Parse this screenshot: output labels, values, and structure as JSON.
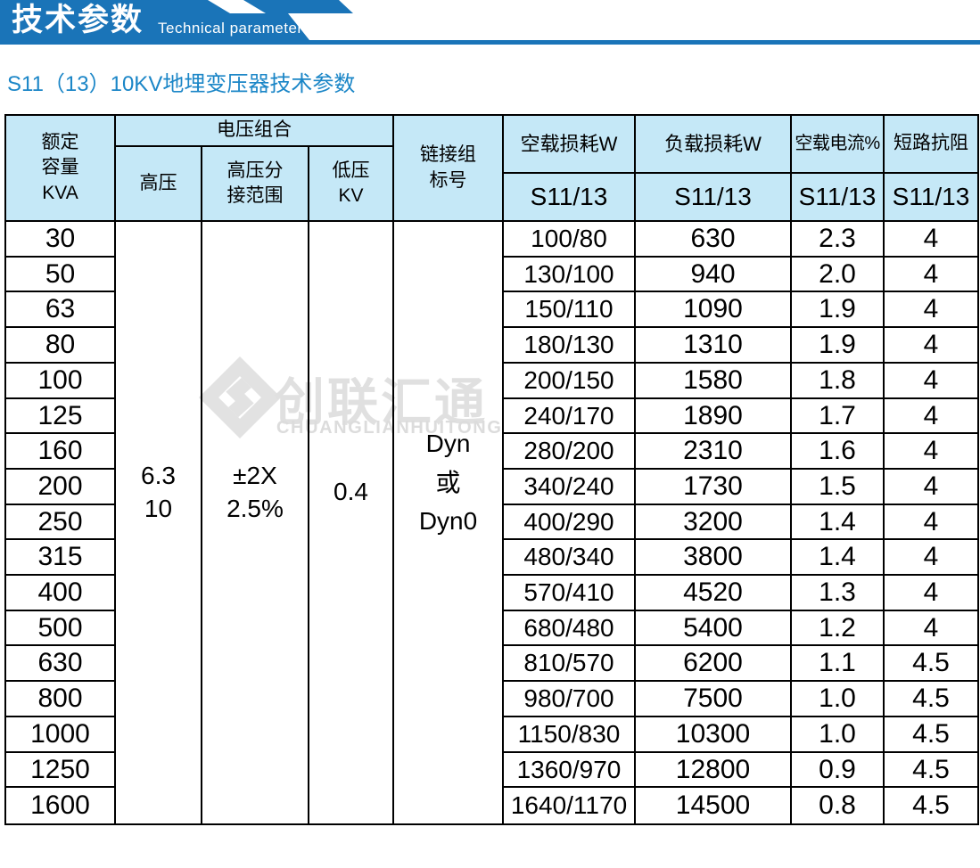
{
  "banner": {
    "title": "技术参数",
    "subtitle": "Technical parameter"
  },
  "section_title": "S11（13）10KV地埋变压器技术参数",
  "colors": {
    "banner_blue": "#1a74b8",
    "title_blue": "#1b86c7",
    "header_bg": "#c5e8f7",
    "border": "#000000",
    "watermark_gray": "#e2e2e2"
  },
  "watermark": {
    "cn": "创联汇通",
    "en": "CHUANGLIANHUITONG"
  },
  "table": {
    "headers": {
      "rated_capacity": "额定\n容量\nKVA",
      "voltage_group": "电压组合",
      "hv": "高压",
      "hv_tap": "高压分\n接范围",
      "lv": "低压\nKV",
      "vector_group": "链接组\n标号",
      "no_load_loss": "空载损耗W",
      "load_loss": "负载损耗W",
      "no_load_current": "空载电流%",
      "impedance": "短路抗阻",
      "sub": "S11/13"
    },
    "merged": {
      "hv": "6.3\n10",
      "hv_tap": "±2X\n2.5%",
      "lv": "0.4",
      "vector_group": "Dyn\n或\nDyn0"
    },
    "rows": [
      {
        "kva": "30",
        "no_load_loss": "100/80",
        "load_loss": "630",
        "no_load_current": "2.3",
        "impedance": "4"
      },
      {
        "kva": "50",
        "no_load_loss": "130/100",
        "load_loss": "940",
        "no_load_current": "2.0",
        "impedance": "4"
      },
      {
        "kva": "63",
        "no_load_loss": "150/110",
        "load_loss": "1090",
        "no_load_current": "1.9",
        "impedance": "4"
      },
      {
        "kva": "80",
        "no_load_loss": "180/130",
        "load_loss": "1310",
        "no_load_current": "1.9",
        "impedance": "4"
      },
      {
        "kva": "100",
        "no_load_loss": "200/150",
        "load_loss": "1580",
        "no_load_current": "1.8",
        "impedance": "4"
      },
      {
        "kva": "125",
        "no_load_loss": "240/170",
        "load_loss": "1890",
        "no_load_current": "1.7",
        "impedance": "4"
      },
      {
        "kva": "160",
        "no_load_loss": "280/200",
        "load_loss": "2310",
        "no_load_current": "1.6",
        "impedance": "4"
      },
      {
        "kva": "200",
        "no_load_loss": "340/240",
        "load_loss": "1730",
        "no_load_current": "1.5",
        "impedance": "4"
      },
      {
        "kva": "250",
        "no_load_loss": "400/290",
        "load_loss": "3200",
        "no_load_current": "1.4",
        "impedance": "4"
      },
      {
        "kva": "315",
        "no_load_loss": "480/340",
        "load_loss": "3800",
        "no_load_current": "1.4",
        "impedance": "4"
      },
      {
        "kva": "400",
        "no_load_loss": "570/410",
        "load_loss": "4520",
        "no_load_current": "1.3",
        "impedance": "4"
      },
      {
        "kva": "500",
        "no_load_loss": "680/480",
        "load_loss": "5400",
        "no_load_current": "1.2",
        "impedance": "4"
      },
      {
        "kva": "630",
        "no_load_loss": "810/570",
        "load_loss": "6200",
        "no_load_current": "1.1",
        "impedance": "4.5"
      },
      {
        "kva": "800",
        "no_load_loss": "980/700",
        "load_loss": "7500",
        "no_load_current": "1.0",
        "impedance": "4.5"
      },
      {
        "kva": "1000",
        "no_load_loss": "1150/830",
        "load_loss": "10300",
        "no_load_current": "1.0",
        "impedance": "4.5"
      },
      {
        "kva": "1250",
        "no_load_loss": "1360/970",
        "load_loss": "12800",
        "no_load_current": "0.9",
        "impedance": "4.5"
      },
      {
        "kva": "1600",
        "no_load_loss": "1640/1170",
        "load_loss": "14500",
        "no_load_current": "0.8",
        "impedance": "4.5"
      }
    ]
  }
}
